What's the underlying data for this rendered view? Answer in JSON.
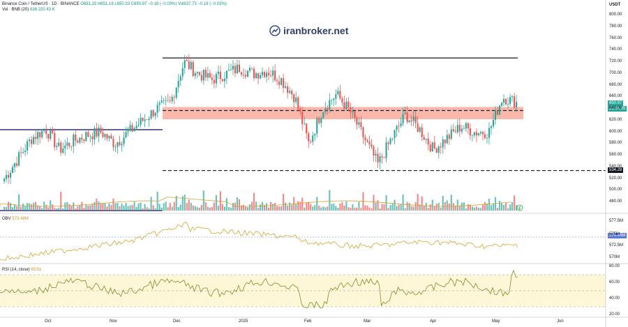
{
  "header": {
    "title": "Binance Coin / TetherUS · 1D · BINANCE",
    "ohlc": "O651.15 H651.19 L650.33 C650.97 −0.18 (−0.03%) Vol637.73 −0.18 (−0.03%)",
    "vol_label": "Vol · BNB (20)",
    "vol_values": "638  220.43 K"
  },
  "watermark": {
    "text": "iranbroker.net"
  },
  "axis": {
    "currency": "USDT"
  },
  "price_tags": {
    "last_price": "650.97",
    "countdown": "23:54:35",
    "support": "534.28"
  },
  "colors": {
    "up": "#26a69a",
    "down": "#ef5350",
    "zone": "#f8a08f",
    "obv_line": "#d4a52a",
    "rsi_line": "#7e8a2a",
    "rsi_band": "#fdf7d8"
  },
  "obv": {
    "label": "OBV",
    "value": "573.48M",
    "axis_ticks": [
      "577.5M",
      "575M",
      "572.5M",
      "570M"
    ],
    "tag": "574.44M"
  },
  "rsi": {
    "label": "RSI (14, close)",
    "value": "65.51",
    "axis_ticks": [
      "80.00",
      "60.00",
      "40.00",
      "20.00"
    ]
  },
  "chart_data": {
    "type": "candlestick",
    "title": "Binance Coin / TetherUS · 1D · BINANCE",
    "y_axis_label": "USDT",
    "y_ticks": [
      800,
      780,
      760,
      740,
      720,
      700,
      680,
      660,
      640,
      620,
      600,
      580,
      560,
      540,
      520,
      500,
      480
    ],
    "ylim": [
      470,
      810
    ],
    "x_ticks": [
      "Oct",
      "Nov",
      "Dec",
      "2025",
      "Feb",
      "Mar",
      "Apr",
      "May",
      "Jun"
    ],
    "series_close": [
      {
        "date": "Sep 11",
        "close": 520
      },
      {
        "date": "Sep 18",
        "close": 555
      },
      {
        "date": "Sep 25",
        "close": 590
      },
      {
        "date": "Oct 01",
        "close": 605
      },
      {
        "date": "Oct 08",
        "close": 570
      },
      {
        "date": "Oct 15",
        "close": 585
      },
      {
        "date": "Oct 22",
        "close": 595
      },
      {
        "date": "Oct 29",
        "close": 600
      },
      {
        "date": "Nov 05",
        "close": 580
      },
      {
        "date": "Nov 12",
        "close": 600
      },
      {
        "date": "Nov 19",
        "close": 620
      },
      {
        "date": "Nov 26",
        "close": 640
      },
      {
        "date": "Dec 01",
        "close": 650
      },
      {
        "date": "Dec 04",
        "close": 720
      },
      {
        "date": "Dec 10",
        "close": 700
      },
      {
        "date": "Dec 17",
        "close": 690
      },
      {
        "date": "Dec 24",
        "close": 700
      },
      {
        "date": "Dec 31",
        "close": 710
      },
      {
        "date": "Jan 07",
        "close": 700
      },
      {
        "date": "Jan 14",
        "close": 705
      },
      {
        "date": "Jan 21",
        "close": 690
      },
      {
        "date": "Jan 28",
        "close": 660
      },
      {
        "date": "Feb 03",
        "close": 580
      },
      {
        "date": "Feb 10",
        "close": 640
      },
      {
        "date": "Feb 17",
        "close": 665
      },
      {
        "date": "Feb 24",
        "close": 635
      },
      {
        "date": "Mar 03",
        "close": 590
      },
      {
        "date": "Mar 10",
        "close": 545
      },
      {
        "date": "Mar 17",
        "close": 590
      },
      {
        "date": "Mar 24",
        "close": 630
      },
      {
        "date": "Mar 31",
        "close": 605
      },
      {
        "date": "Apr 07",
        "close": 570
      },
      {
        "date": "Apr 14",
        "close": 590
      },
      {
        "date": "Apr 21",
        "close": 610
      },
      {
        "date": "Apr 28",
        "close": 600
      },
      {
        "date": "May 05",
        "close": 600
      },
      {
        "date": "May 09",
        "close": 660
      },
      {
        "date": "May 13",
        "close": 651
      }
    ],
    "horizontal_lines": [
      {
        "kind": "resistance",
        "style": "solid",
        "value": 727
      },
      {
        "kind": "zone",
        "from": 622,
        "to": 643
      },
      {
        "kind": "zone-mid",
        "style": "dashed",
        "value": 637
      },
      {
        "kind": "support",
        "style": "dashed",
        "value": 534.28
      },
      {
        "kind": "early-level",
        "style": "solid",
        "value": 606
      }
    ],
    "legend": "none",
    "grid": false
  }
}
